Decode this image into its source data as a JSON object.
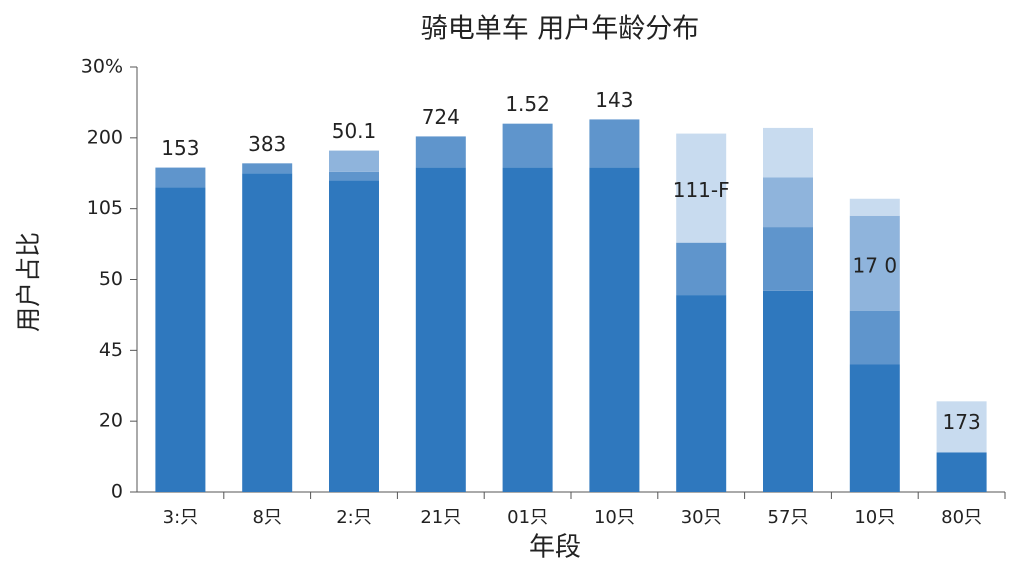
{
  "chart_data": {
    "type": "stacked_bar",
    "title": "骑电单车 用户年龄分布",
    "xlabel": "年段",
    "ylabel": "用户占比",
    "categories": [
      "3:只",
      "8只",
      "2:只",
      "21只",
      "01只",
      "10只",
      "30只",
      "57只",
      "10只",
      "80只"
    ],
    "series": [
      {
        "color": "#2f78be",
        "values": [
          21.5,
          22.5,
          22.0,
          22.9,
          22.9,
          22.9,
          13.9,
          14.2,
          9.0,
          2.8
        ]
      },
      {
        "color": "#5f95cc",
        "values": [
          1.4,
          0.7,
          0.6,
          2.2,
          3.1,
          3.4,
          3.7,
          4.5,
          3.8,
          null
        ]
      },
      {
        "color": "#8fb4dc",
        "values": [
          null,
          null,
          1.5,
          null,
          null,
          null,
          null,
          3.5,
          6.7,
          null
        ]
      },
      {
        "color": "#c8dbef",
        "values": [
          null,
          null,
          null,
          null,
          null,
          null,
          7.7,
          3.5,
          1.2,
          3.6
        ]
      }
    ],
    "bar_labels": [
      "153",
      "383",
      "50.1",
      "724",
      "1.52",
      "143",
      "111-F",
      null,
      "17 0",
      "173"
    ],
    "ylim": [
      0,
      30
    ],
    "yticks": [
      0,
      {
        "value": 5,
        "label": "20"
      },
      {
        "value": 10,
        "label": "45"
      },
      {
        "value": 15,
        "label": "50"
      },
      {
        "value": 20,
        "label": "105"
      },
      {
        "value": 25,
        "label": "200"
      },
      {
        "value": 30,
        "label": "30%"
      }
    ]
  }
}
